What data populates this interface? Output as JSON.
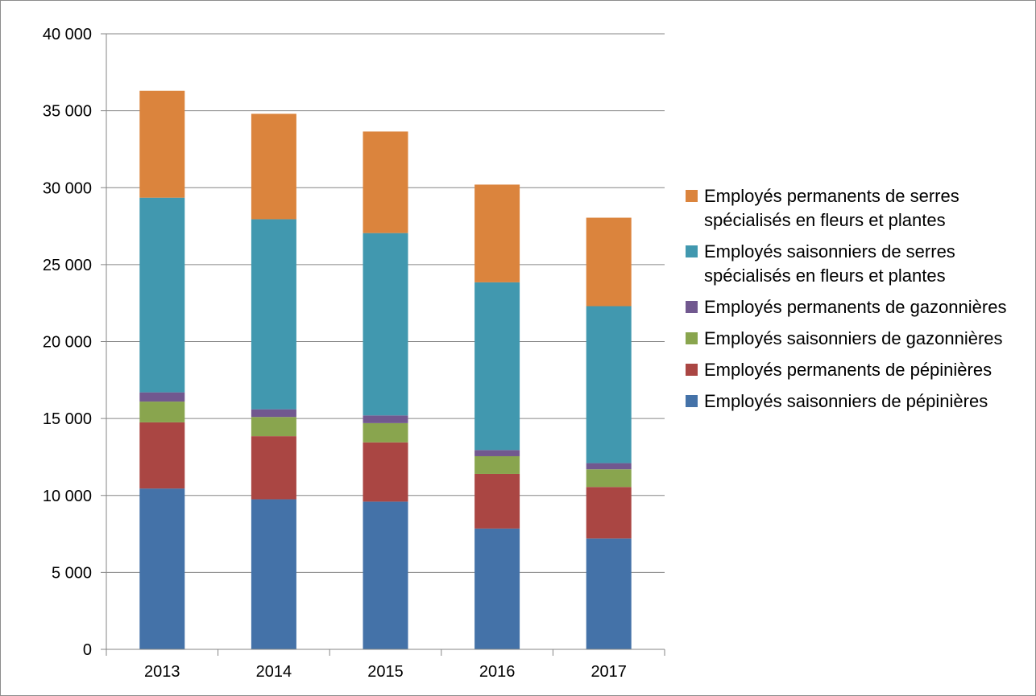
{
  "chart_data": {
    "type": "bar",
    "stacked": true,
    "categories": [
      "2013",
      "2014",
      "2015",
      "2016",
      "2017"
    ],
    "ylim": [
      0,
      40000
    ],
    "yticks": [
      0,
      5000,
      10000,
      15000,
      20000,
      25000,
      30000,
      35000,
      40000
    ],
    "ytick_labels": [
      "0",
      "5 000",
      "10 000",
      "15 000",
      "20 000",
      "25 000",
      "30 000",
      "35 000",
      "40 000"
    ],
    "grid": true,
    "legend_position": "right",
    "series": [
      {
        "name": "Employés saisonniers de pépinières",
        "color": "#4472a8",
        "values": [
          10450,
          9750,
          9600,
          7850,
          7200
        ]
      },
      {
        "name": "Employés permanents de pépinières",
        "color": "#aa4643",
        "values": [
          4300,
          4100,
          3850,
          3550,
          3350
        ]
      },
      {
        "name": "Employés saisonniers de gazonnières",
        "color": "#89a54e",
        "values": [
          1350,
          1250,
          1250,
          1150,
          1150
        ]
      },
      {
        "name": "Employés permanents de gazonnières",
        "color": "#71588f",
        "values": [
          600,
          500,
          500,
          400,
          400
        ]
      },
      {
        "name": "Employés saisonniers de serres spécialisés en fleurs et plantes",
        "color": "#4198af",
        "values": [
          12650,
          12350,
          11850,
          10900,
          10200
        ]
      },
      {
        "name": "Employés permanents de serres spécialisés en fleurs et plantes",
        "color": "#db843d",
        "values": [
          6950,
          6850,
          6600,
          6350,
          5750
        ]
      }
    ]
  }
}
